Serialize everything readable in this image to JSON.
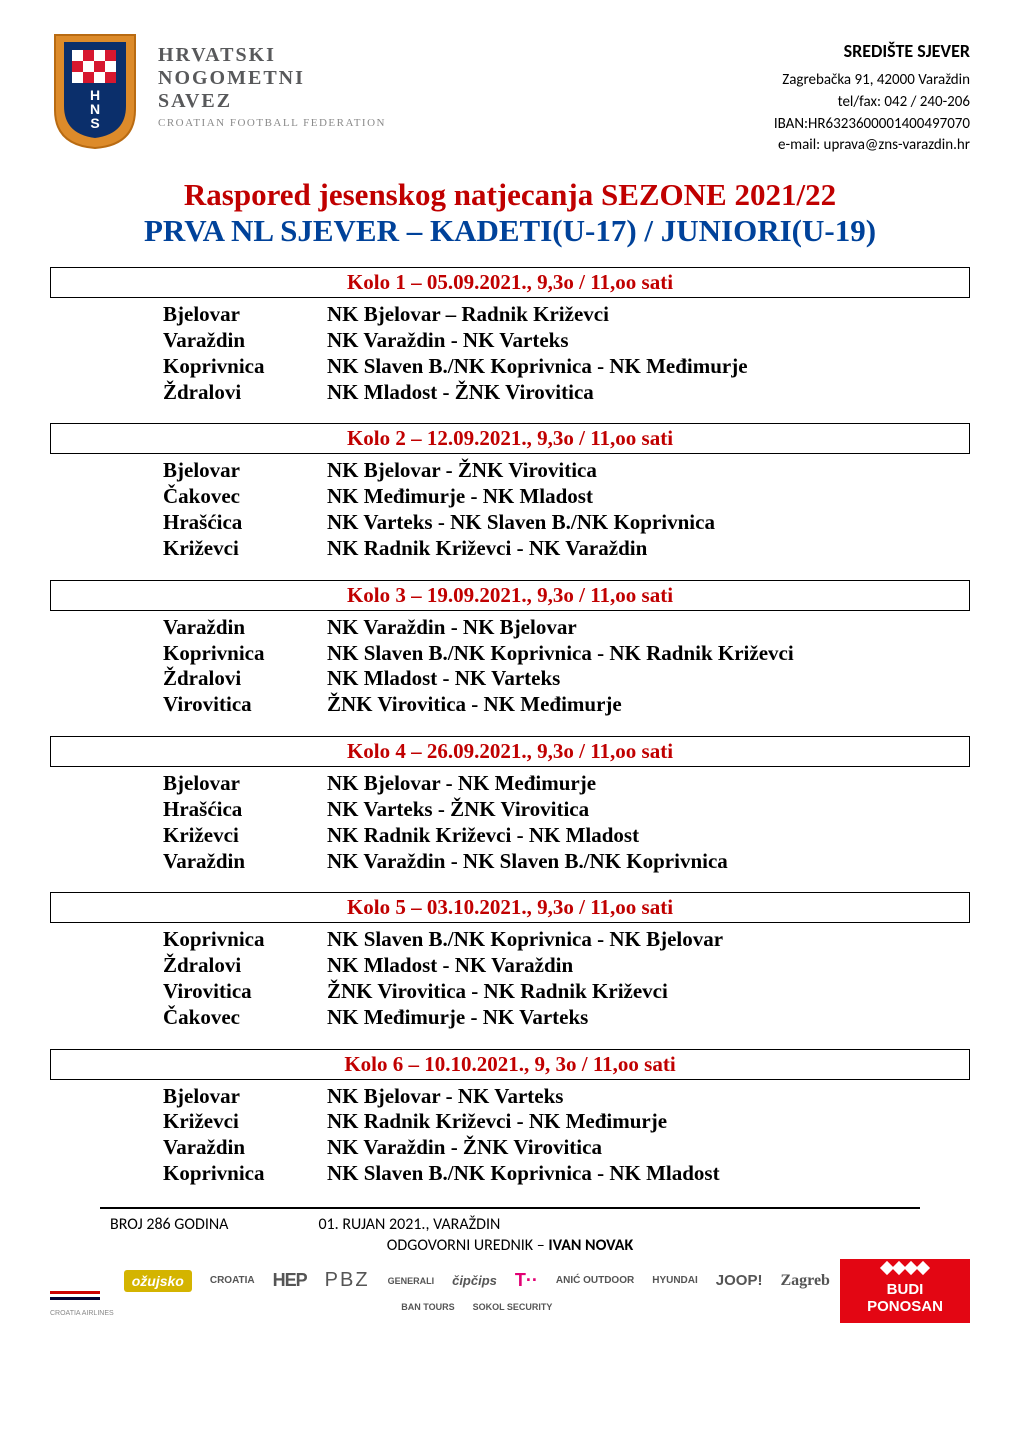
{
  "header": {
    "org_line1": "HRVATSKI",
    "org_line2": "NOGOMETNI",
    "org_line3": "SAVEZ",
    "org_line4": "CROATIAN FOOTBALL FEDERATION",
    "right_title": "SREDIŠTE SJEVER",
    "address": "Zagrebačka 91, 42000 Varaždin",
    "telfax": "tel/fax: 042 / 240-206",
    "iban": "IBAN:HR6323600001400497070",
    "email": "e-mail: uprava@zns-varazdin.hr"
  },
  "title": {
    "line1": "Raspored jesenskog natjecanja SEZONE 2021/22",
    "line2": "PRVA NL SJEVER – KADETI(U-17) / JUNIORI(U-19)"
  },
  "colors": {
    "red": "#c00000",
    "blue": "#00429a",
    "brand_red": "#e30613"
  },
  "rounds": [
    {
      "header": "Kolo 1 – 05.09.2021., 9,3o / 11,oo sati",
      "matches": [
        {
          "loc": "Bjelovar",
          "game": "NK Bjelovar – Radnik Križevci"
        },
        {
          "loc": "Varaždin",
          "game": "NK Varaždin - NK Varteks"
        },
        {
          "loc": "Koprivnica",
          "game": "NK Slaven B./NK Koprivnica - NK Međimurje"
        },
        {
          "loc": "Ždralovi",
          "game": "NK Mladost  - ŽNK Virovitica"
        }
      ]
    },
    {
      "header": "Kolo 2 – 12.09.2021., 9,3o / 11,oo sati",
      "matches": [
        {
          "loc": "Bjelovar",
          "game": "NK Bjelovar - ŽNK Virovitica"
        },
        {
          "loc": "Čakovec",
          "game": "NK Međimurje - NK Mladost"
        },
        {
          "loc": "Hrašćica",
          "game": "NK Varteks - NK Slaven B./NK Koprivnica"
        },
        {
          "loc": "Križevci",
          "game": "NK Radnik Križevci - NK Varaždin"
        }
      ]
    },
    {
      "header": "Kolo 3 – 19.09.2021., 9,3o / 11,oo sati",
      "matches": [
        {
          "loc": "Varaždin",
          "game": "NK Varaždin - NK Bjelovar"
        },
        {
          "loc": "Koprivnica",
          "game": "NK Slaven B./NK Koprivnica - NK Radnik Križevci"
        },
        {
          "loc": "Ždralovi",
          "game": "NK Mladost - NK Varteks"
        },
        {
          "loc": "Virovitica",
          "game": "ŽNK Virovitica - NK Međimurje"
        }
      ]
    },
    {
      "header": "Kolo 4 – 26.09.2021., 9,3o / 11,oo sati",
      "matches": [
        {
          "loc": "Bjelovar",
          "game": "NK Bjelovar - NK Međimurje"
        },
        {
          "loc": "Hrašćica",
          "game": "NK Varteks - ŽNK Virovitica"
        },
        {
          "loc": "Križevci",
          "game": "NK Radnik Križevci - NK Mladost"
        },
        {
          "loc": "Varaždin",
          "game": "NK Varaždin - NK Slaven B./NK Koprivnica"
        }
      ]
    },
    {
      "header": "Kolo 5 – 03.10.2021., 9,3o / 11,oo sati",
      "matches": [
        {
          "loc": "Koprivnica",
          "game": "NK Slaven B./NK Koprivnica - NK Bjelovar"
        },
        {
          "loc": "Ždralovi",
          "game": "NK Mladost - NK Varaždin"
        },
        {
          "loc": "Virovitica",
          "game": "ŽNK Virovitica - NK Radnik Križevci"
        },
        {
          "loc": "Čakovec",
          "game": "NK Međimurje - NK Varteks"
        }
      ]
    },
    {
      "header": "Kolo 6 – 10.10.2021., 9, 3o / 11,oo sati",
      "matches": [
        {
          "loc": "Bjelovar",
          "game": "NK Bjelovar - NK Varteks"
        },
        {
          "loc": "Križevci",
          "game": "NK Radnik Križevci - NK Međimurje"
        },
        {
          "loc": "Varaždin",
          "game": "NK Varaždin - ŽNK Virovitica"
        },
        {
          "loc": "Koprivnica",
          "game": "NK Slaven B./NK Koprivnica  - NK Mladost"
        }
      ]
    }
  ],
  "footer": {
    "issue": "BROJ 286 GODINA",
    "date_place": "01. RUJAN 2021., VARAŽDIN",
    "editor_label": "ODGOVORNI UREDNIK – ",
    "editor_name": "IVAN NOVAK",
    "budi_ponosan": "BUDI PONOSAN",
    "sponsors_row1": [
      "ožujsko",
      "CROATIA",
      "HEP",
      "PBZ",
      "GENERALI",
      "čipčips",
      "T··"
    ],
    "sponsors_row2": [
      "ANIĆ OUTDOOR",
      "HYUNDAI",
      "JOOP!",
      "Zagreb",
      "BAN TOURS",
      "SOKOL SECURITY"
    ],
    "airlines": "CROATIA AIRLINES"
  }
}
